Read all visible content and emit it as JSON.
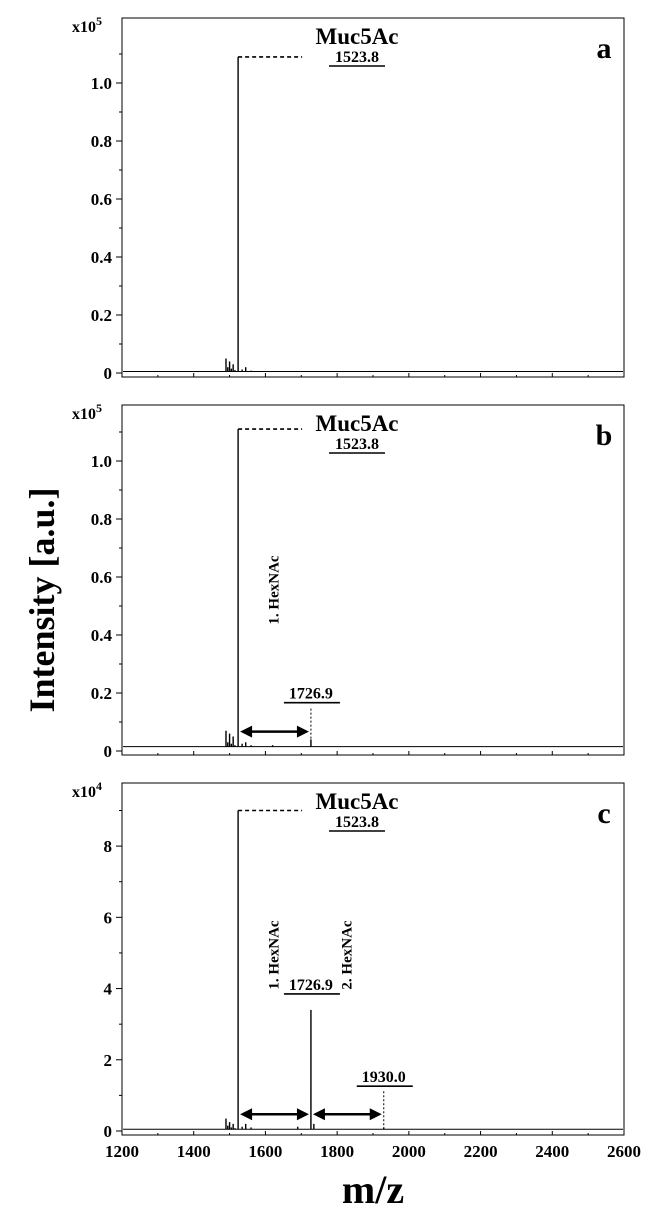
{
  "chart_data": {
    "type": "line",
    "shared_xlabel": "m/z",
    "shared_ylabel": "Intensity [a.u.]",
    "xlim": [
      1200,
      2600
    ],
    "xticks": [
      "1200",
      "1400",
      "1600",
      "1800",
      "2000",
      "2200",
      "2400",
      "2600"
    ],
    "panels": [
      {
        "letter": "a",
        "multiplier": "x10",
        "multiplier_exp": "5",
        "ylim": [
          0,
          1.2
        ],
        "yticks": [
          "0",
          "0.2",
          "0.4",
          "0.6",
          "0.8",
          "1.0"
        ],
        "baseline": 0.005,
        "series": {
          "x": [
            1490,
            1495,
            1500,
            1505,
            1510,
            1515,
            1523.8,
            1535,
            1545,
            1560,
            1620
          ],
          "y": [
            0.05,
            0.02,
            0.04,
            0.015,
            0.03,
            0.01,
            1.09,
            0.012,
            0.02,
            0.008,
            0.006
          ]
        },
        "annotations": [
          {
            "name": "Muc5Ac",
            "mz": "1523.8"
          }
        ],
        "arrows": []
      },
      {
        "letter": "b",
        "multiplier": "x10",
        "multiplier_exp": "5",
        "ylim": [
          0,
          1.2
        ],
        "yticks": [
          "0",
          "0.2",
          "0.4",
          "0.6",
          "0.8",
          "1.0"
        ],
        "baseline": 0.015,
        "series": {
          "x": [
            1490,
            1495,
            1500,
            1505,
            1510,
            1515,
            1523.8,
            1535,
            1545,
            1560,
            1620,
            1726.9
          ],
          "y": [
            0.07,
            0.03,
            0.06,
            0.025,
            0.05,
            0.02,
            1.11,
            0.025,
            0.03,
            0.02,
            0.02,
            0.04
          ]
        },
        "annotations": [
          {
            "name": "Muc5Ac",
            "mz": "1523.8"
          },
          {
            "mz": "1726.9"
          }
        ],
        "arrows": [
          {
            "from": 1523.8,
            "to": 1726.9,
            "label": "1. HexNAc"
          }
        ]
      },
      {
        "letter": "c",
        "multiplier": "x10",
        "multiplier_exp": "4",
        "ylim": [
          0,
          9.8
        ],
        "yticks": [
          "0",
          "2",
          "4",
          "6",
          "8"
        ],
        "baseline": 0.05,
        "series": {
          "x": [
            1490,
            1495,
            1500,
            1505,
            1510,
            1515,
            1523.8,
            1535,
            1545,
            1560,
            1690,
            1726.9,
            1735,
            1930.0
          ],
          "y": [
            0.35,
            0.15,
            0.25,
            0.1,
            0.2,
            0.08,
            9.0,
            0.12,
            0.2,
            0.1,
            0.12,
            3.4,
            0.2,
            0.1
          ]
        },
        "annotations": [
          {
            "name": "Muc5Ac",
            "mz": "1523.8"
          },
          {
            "mz": "1726.9"
          },
          {
            "mz": "1930.0"
          }
        ],
        "arrows": [
          {
            "from": 1523.8,
            "to": 1726.9,
            "label": "1. HexNAc"
          },
          {
            "from": 1726.9,
            "to": 1930.0,
            "label": "2. HexNAc"
          }
        ]
      }
    ]
  }
}
